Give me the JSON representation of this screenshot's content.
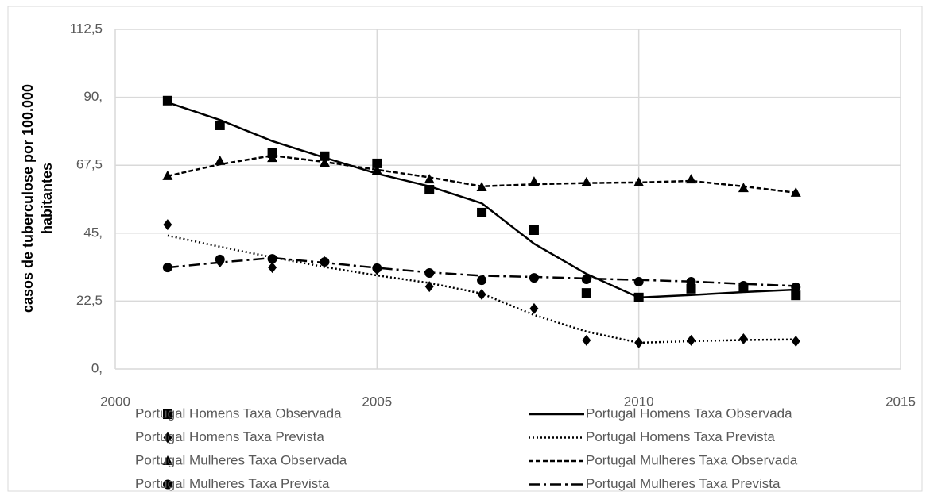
{
  "chart_data": {
    "type": "line",
    "y_label": [
      "casos de tuberculose por 100.000",
      "habitantes"
    ],
    "x": [
      2001,
      2002,
      2003,
      2004,
      2005,
      2006,
      2007,
      2008,
      2009,
      2010,
      2011,
      2012,
      2013
    ],
    "xlim": [
      2000,
      2015
    ],
    "xticks": [
      2000,
      2005,
      2010,
      2015
    ],
    "ylim": [
      0,
      112.5
    ],
    "yticks": [
      {
        "value": 0,
        "label": "0,"
      },
      {
        "value": 22.5,
        "label": "22,5"
      },
      {
        "value": 45,
        "label": "45,"
      },
      {
        "value": 67.5,
        "label": "67,5"
      },
      {
        "value": 90,
        "label": "90,"
      },
      {
        "value": 112.5,
        "label": "112,5"
      }
    ],
    "grid": true,
    "legend": "bottom",
    "series": [
      {
        "name": "Portugal Homens Taxa Observada",
        "color": "#000000",
        "marker": "square",
        "values": [
          88.9,
          80.7,
          71.5,
          70.5,
          68.1,
          59.4,
          51.8,
          46.0,
          25.2,
          23.7,
          26.6,
          27.1,
          24.4
        ]
      },
      {
        "name": "Portugal Homens Taxa Observada",
        "color": "#000000",
        "line": "solid",
        "values": [
          88.3,
          82.5,
          75.5,
          70.0,
          64.7,
          60.5,
          54.9,
          41.5,
          31.5,
          23.7,
          24.5,
          25.5,
          26.3
        ]
      },
      {
        "name": "Portugal Homens Taxa Prevista",
        "color": "#000000",
        "marker": "diamond",
        "values": [
          47.8,
          35.5,
          33.6,
          35.5,
          33.0,
          27.3,
          24.7,
          20.0,
          9.5,
          8.7,
          9.5,
          10.0,
          9.2
        ]
      },
      {
        "name": "Portugal Homens Taxa Prevista",
        "color": "#000000",
        "line": "dotted",
        "values": [
          44.2,
          40.5,
          37.0,
          33.8,
          31.0,
          28.5,
          25.0,
          17.9,
          12.4,
          8.7,
          9.2,
          9.6,
          9.8
        ]
      },
      {
        "name": "Portugal Mulheres Taxa Observada",
        "color": "#000000",
        "marker": "triangle",
        "values": [
          63.9,
          68.9,
          69.9,
          68.3,
          65.7,
          62.8,
          60.2,
          62.0,
          61.8,
          61.8,
          62.8,
          59.9,
          58.4
        ]
      },
      {
        "name": "Portugal Mulheres Taxa Observada",
        "color": "#000000",
        "line": "dashed",
        "values": [
          63.9,
          67.8,
          70.7,
          68.6,
          66.0,
          63.5,
          60.5,
          61.2,
          61.6,
          61.8,
          62.3,
          60.5,
          58.4
        ]
      },
      {
        "name": "Portugal Mulheres Taxa Prevista",
        "color": "#000000",
        "marker": "circle",
        "values": [
          33.6,
          36.3,
          36.5,
          35.5,
          33.4,
          31.8,
          29.4,
          30.2,
          29.7,
          28.9,
          28.9,
          27.6,
          27.1
        ]
      },
      {
        "name": "Portugal Mulheres Taxa Prevista",
        "color": "#000000",
        "line": "dashdot",
        "values": [
          33.6,
          35.3,
          36.8,
          35.2,
          33.5,
          32.0,
          30.9,
          30.5,
          30.0,
          29.5,
          29.0,
          28.2,
          27.5
        ]
      }
    ]
  }
}
